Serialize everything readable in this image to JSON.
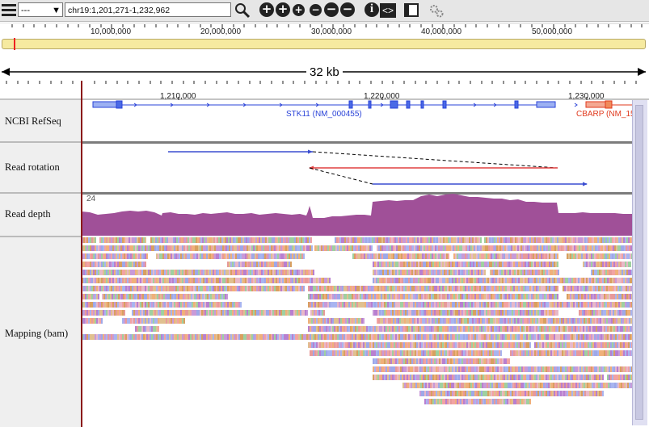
{
  "toolbar": {
    "genome_value": "---",
    "locus": "chr19:1,201,271-1,232,962",
    "icons": [
      "menu-icon",
      "search-icon",
      "zoom-in-icon",
      "zoom-in-medium-icon",
      "zoom-in-small-icon",
      "zoom-out-small-icon",
      "zoom-out-medium-icon",
      "zoom-out-icon",
      "info-icon",
      "expand-icon",
      "panel-icon",
      "settings-icon"
    ]
  },
  "ideogram": {
    "ticks": [
      "10,000,000",
      "20,000,000",
      "30,000,000",
      "40,000,000",
      "50,000,000"
    ],
    "highlight_color": "#e22222"
  },
  "scale": {
    "label": "32 kb"
  },
  "ruler": {
    "ticks": [
      "1,210,000",
      "1,220,000",
      "1,230,000"
    ]
  },
  "tracks": {
    "refseq": {
      "name": "NCBI RefSeq",
      "genes": [
        "STK11 (NM_000455)",
        "CBARP (NM_15"
      ]
    },
    "rotation": {
      "name": "Read rotation"
    },
    "depth": {
      "name": "Read depth",
      "scale_max": "24"
    },
    "mapping": {
      "name": "Mapping (bam)"
    }
  },
  "colors": {
    "gene_blue": "#2a43d8",
    "gene_red": "#e03a1e",
    "depth": "#a05098",
    "read_forward": "#3a4dd0",
    "read_reverse": "#e04040"
  }
}
